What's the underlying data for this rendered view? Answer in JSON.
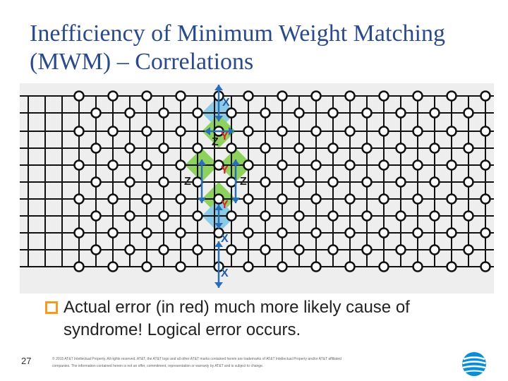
{
  "slide": {
    "title": "Inefficiency of Minimum Weight Matching (MWM) – Correlations",
    "bullet": "Actual error (in red) much more likely cause of syndrome! Logical error occurs.",
    "page_number": "27",
    "footer": "© 2015 AT&T Intellectual Property. All rights reserved. AT&T, the AT&T logo and all other AT&T marks contained herein are trademarks of AT&T Intellectual Property and/or AT&T affiliated companies. The information contained herein is not an offer, commitment, representation or warranty by AT&T and is subject to change."
  },
  "diagram": {
    "colors": {
      "edge": "#111111",
      "node_fill": "#ffffff",
      "plaquette_blue": "#8ccbe8",
      "plaquette_green": "#8fd15e",
      "arrow": "#2a6fb5",
      "label_red": "#e0202a",
      "label_blue": "#1f5fa8",
      "label_dark": "#222222",
      "bullet": "#f59a1f"
    },
    "labels": [
      {
        "text": "X",
        "color_key": "label_blue"
      },
      {
        "text": "Z",
        "color_key": "label_dark"
      },
      {
        "text": "Y",
        "color_key": "label_red"
      },
      {
        "text": "Y",
        "color_key": "label_red"
      },
      {
        "text": "Z",
        "color_key": "label_dark"
      },
      {
        "text": "Z",
        "color_key": "label_dark"
      },
      {
        "text": "Y",
        "color_key": "label_red"
      },
      {
        "text": "X",
        "color_key": "label_blue"
      },
      {
        "text": "X",
        "color_key": "label_blue"
      }
    ]
  }
}
